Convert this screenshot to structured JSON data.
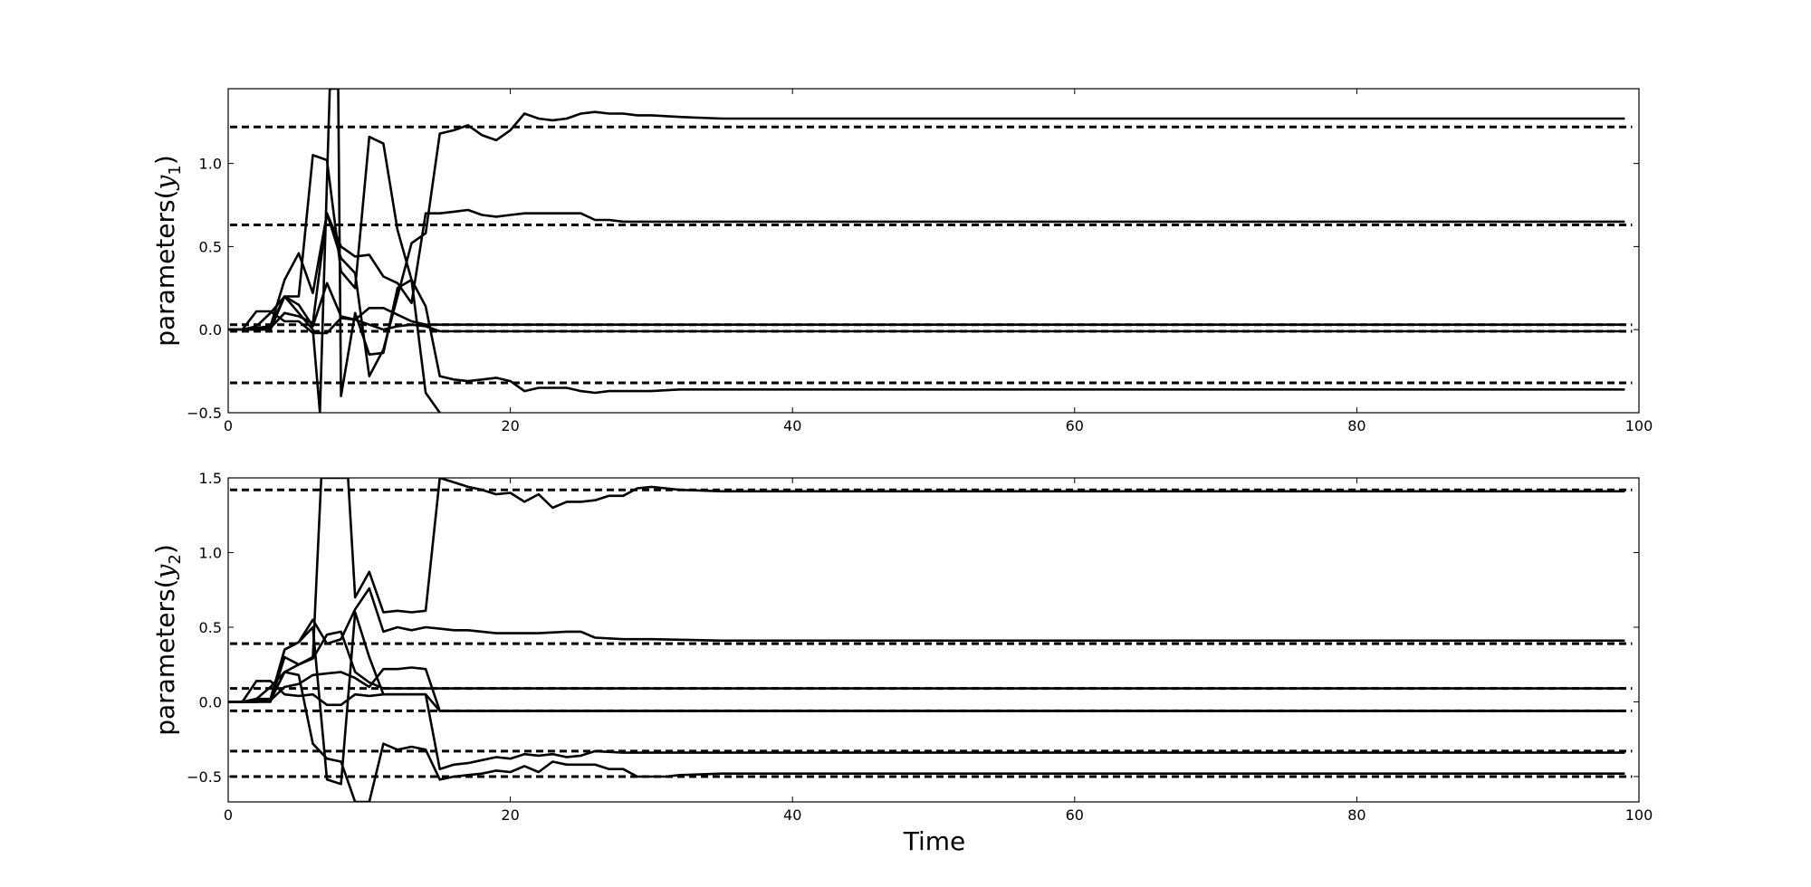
{
  "figure": {
    "xlabel": "Time"
  },
  "chart_data": [
    {
      "type": "line",
      "title": "",
      "ylabel": "parameters(y1)",
      "ylabel_parts": {
        "prefix": "parameters(",
        "var": "y",
        "sub": "1",
        "suffix": ")"
      },
      "xlim": [
        0,
        100
      ],
      "ylim": [
        -0.5,
        1.45
      ],
      "xticks": [
        0,
        20,
        40,
        60,
        80,
        100
      ],
      "xtick_labels": [
        "0",
        "20",
        "40",
        "60",
        "80",
        "100"
      ],
      "yticks": [
        -0.5,
        0.0,
        0.5,
        1.0
      ],
      "ytick_labels": [
        "−0.5",
        "0.0",
        "0.5",
        "1.0"
      ],
      "grid": false,
      "reference_lines": [
        1.22,
        0.63,
        0.03,
        -0.01,
        -0.32
      ],
      "series": [
        {
          "x": [
            0,
            1,
            2,
            3,
            4,
            5,
            6,
            7,
            8,
            9,
            10,
            11,
            12,
            13,
            14,
            15,
            16,
            17,
            18,
            19,
            20,
            21,
            22,
            23,
            24,
            25,
            26,
            27,
            28,
            29,
            30,
            32,
            35,
            40,
            45,
            50,
            60,
            70,
            80,
            90,
            99
          ],
          "values": [
            0,
            0,
            0,
            0.01,
            0.1,
            0.08,
            0.04,
            0.7,
            0.5,
            0.44,
            0.45,
            0.32,
            0.28,
            0.16,
            0.7,
            0.7,
            0.71,
            0.72,
            0.69,
            0.68,
            0.69,
            0.7,
            0.7,
            0.7,
            0.7,
            0.7,
            0.66,
            0.66,
            0.65,
            0.65,
            0.65,
            0.65,
            0.65,
            0.65,
            0.65,
            0.65,
            0.65,
            0.65,
            0.65,
            0.65,
            0.65
          ]
        },
        {
          "x": [
            0,
            1,
            2,
            3,
            4,
            5,
            6,
            7,
            8,
            9,
            10,
            11,
            12,
            13,
            14,
            15,
            16,
            17,
            18,
            19,
            20,
            21,
            22,
            23,
            24,
            25,
            26,
            27,
            28,
            29,
            30,
            32,
            35,
            40,
            45,
            50,
            60,
            70,
            80,
            90,
            99
          ],
          "values": [
            0,
            0,
            0.01,
            0.02,
            0.2,
            0.15,
            0.02,
            0.28,
            0.08,
            0.06,
            0.13,
            0.13,
            0.09,
            0.05,
            0.03,
            0.03,
            0.03,
            0.03,
            0.03,
            0.03,
            0.03,
            0.03,
            0.03,
            0.03,
            0.03,
            0.03,
            0.03,
            0.03,
            0.03,
            0.03,
            0.03,
            0.03,
            0.03,
            0.03,
            0.03,
            0.03,
            0.03,
            0.03,
            0.03,
            0.03,
            0.03
          ]
        },
        {
          "x": [
            0,
            1,
            2,
            3,
            4,
            5,
            6,
            7,
            8,
            9,
            10,
            11,
            12,
            13,
            14,
            15,
            16,
            17,
            18,
            19,
            20,
            21,
            22,
            23,
            24,
            25,
            26,
            27,
            28,
            29,
            30,
            32,
            35,
            40,
            45,
            50,
            60,
            70,
            80,
            90,
            99
          ],
          "values": [
            0,
            0,
            0.01,
            0.02,
            0.3,
            0.46,
            0.22,
            0.7,
            0.43,
            0.34,
            -0.28,
            -0.12,
            0.2,
            0.52,
            0.58,
            1.18,
            1.2,
            1.23,
            1.17,
            1.14,
            1.2,
            1.3,
            1.27,
            1.26,
            1.27,
            1.3,
            1.31,
            1.3,
            1.3,
            1.29,
            1.29,
            1.28,
            1.27,
            1.27,
            1.27,
            1.27,
            1.27,
            1.27,
            1.27,
            1.27,
            1.27
          ]
        },
        {
          "x": [
            0,
            1,
            2,
            3,
            4,
            5,
            6,
            7,
            8,
            9,
            10,
            11,
            12,
            13,
            14,
            15,
            16,
            17,
            18,
            19,
            20,
            21,
            22,
            23,
            24,
            25,
            26,
            27,
            28,
            29,
            30,
            32,
            35,
            40,
            45,
            50,
            60,
            70,
            80,
            90,
            99
          ],
          "values": [
            0,
            0,
            0.11,
            0.11,
            0.05,
            0.05,
            -0.02,
            -0.02,
            0.07,
            0.06,
            0.03,
            0.0,
            0.02,
            0.03,
            0.02,
            -0.01,
            -0.01,
            -0.01,
            -0.01,
            -0.01,
            -0.01,
            -0.01,
            -0.01,
            -0.01,
            -0.01,
            -0.01,
            -0.01,
            -0.01,
            -0.01,
            -0.01,
            -0.01,
            -0.01,
            -0.01,
            -0.01,
            -0.01,
            -0.01,
            -0.01,
            -0.01,
            -0.01,
            -0.01,
            -0.01
          ]
        },
        {
          "x": [
            0,
            1,
            2,
            3,
            4,
            5,
            6,
            7,
            8,
            9,
            10,
            11,
            12,
            13,
            14,
            15,
            16,
            17,
            18,
            19,
            20,
            21,
            22,
            23,
            24,
            25,
            26,
            27,
            28,
            29,
            30,
            32,
            35,
            40,
            45,
            50,
            60,
            70,
            80,
            90,
            99
          ],
          "values": [
            0,
            0,
            0.02,
            0.1,
            0.2,
            0.2,
            1.05,
            1.02,
            0.35,
            0.25,
            1.16,
            1.12,
            0.6,
            0.3,
            0.14,
            -0.28,
            -0.3,
            -0.31,
            -0.3,
            -0.29,
            -0.31,
            -0.37,
            -0.35,
            -0.35,
            -0.35,
            -0.37,
            -0.38,
            -0.37,
            -0.37,
            -0.37,
            -0.37,
            -0.36,
            -0.36,
            -0.36,
            -0.36,
            -0.36,
            -0.36,
            -0.36,
            -0.36,
            -0.36,
            -0.36
          ]
        },
        {
          "x": [
            0,
            1,
            2,
            3,
            4,
            5,
            6,
            6.5,
            7.2,
            7.8,
            8,
            9,
            10,
            11,
            12,
            13,
            14,
            15
          ],
          "values": [
            0,
            0,
            0,
            0,
            0.2,
            0.1,
            0.0,
            -0.5,
            1.45,
            1.45,
            -0.4,
            0.1,
            -0.15,
            -0.14,
            0.25,
            0.3,
            -0.38,
            -0.5
          ]
        }
      ]
    },
    {
      "type": "line",
      "title": "",
      "ylabel": "parameters(y2)",
      "ylabel_parts": {
        "prefix": "parameters(",
        "var": "y",
        "sub": "2",
        "suffix": ")"
      },
      "xlim": [
        0,
        100
      ],
      "ylim": [
        -0.67,
        1.5
      ],
      "xticks": [
        0,
        20,
        40,
        60,
        80,
        100
      ],
      "xtick_labels": [
        "0",
        "20",
        "40",
        "60",
        "80",
        "100"
      ],
      "yticks": [
        -0.5,
        0.0,
        0.5,
        1.0,
        1.5
      ],
      "ytick_labels": [
        "−0.5",
        "0.0",
        "0.5",
        "1.0",
        "1.5"
      ],
      "grid": false,
      "reference_lines": [
        1.42,
        0.39,
        0.09,
        -0.06,
        -0.33,
        -0.5
      ],
      "series": [
        {
          "x": [
            0,
            1,
            2,
            3,
            4,
            5,
            6,
            6.6,
            7.4,
            8,
            8.5,
            9,
            10,
            11,
            12,
            13,
            14,
            15,
            16,
            17,
            18,
            19,
            20,
            21,
            22,
            23,
            24,
            25,
            26,
            27,
            28,
            29,
            30,
            31,
            32,
            35,
            40,
            45,
            50,
            60,
            70,
            80,
            90,
            99
          ],
          "values": [
            0,
            0,
            0,
            0,
            0.3,
            0.25,
            0.3,
            1.5,
            1.5,
            1.5,
            1.5,
            0.7,
            0.87,
            0.6,
            0.61,
            0.6,
            0.61,
            1.5,
            1.47,
            1.44,
            1.42,
            1.39,
            1.4,
            1.34,
            1.39,
            1.3,
            1.34,
            1.34,
            1.35,
            1.38,
            1.38,
            1.43,
            1.44,
            1.43,
            1.42,
            1.41,
            1.41,
            1.41,
            1.41,
            1.41,
            1.41,
            1.41,
            1.41,
            1.41
          ]
        },
        {
          "x": [
            0,
            1,
            2,
            3,
            4,
            5,
            6,
            7,
            8,
            9,
            10,
            11,
            12,
            13,
            14,
            15,
            16,
            17,
            18,
            19,
            20,
            22,
            24,
            25,
            26,
            28,
            30,
            35,
            40,
            50,
            60,
            70,
            80,
            90,
            99
          ],
          "values": [
            0,
            0,
            0.02,
            0.02,
            0.35,
            0.4,
            0.55,
            0.39,
            0.42,
            0.62,
            0.76,
            0.47,
            0.5,
            0.48,
            0.5,
            0.49,
            0.48,
            0.48,
            0.47,
            0.46,
            0.46,
            0.46,
            0.47,
            0.47,
            0.43,
            0.42,
            0.42,
            0.41,
            0.41,
            0.41,
            0.41,
            0.41,
            0.41,
            0.41,
            0.41
          ]
        },
        {
          "x": [
            0,
            1,
            2,
            3,
            4,
            5,
            6,
            7,
            8,
            9,
            10,
            11,
            12,
            13,
            14,
            15,
            16,
            20,
            25,
            30,
            40,
            50,
            60,
            70,
            80,
            90,
            99
          ],
          "values": [
            0,
            0,
            0.01,
            0.01,
            0.1,
            0.12,
            0.18,
            0.19,
            0.2,
            0.16,
            0.1,
            0.22,
            0.22,
            0.23,
            0.22,
            -0.06,
            -0.06,
            -0.06,
            -0.06,
            -0.06,
            -0.06,
            -0.06,
            -0.06,
            -0.06,
            -0.06,
            -0.06,
            -0.06
          ]
        },
        {
          "x": [
            0,
            1,
            2,
            3,
            4,
            5,
            6,
            7,
            8,
            9,
            10,
            11,
            12,
            13,
            14,
            15,
            20,
            25,
            30,
            40,
            50,
            60,
            70,
            80,
            90,
            99
          ],
          "values": [
            0,
            0,
            0,
            0.01,
            0.2,
            0.25,
            0.29,
            0.45,
            0.47,
            0.2,
            0.13,
            0.09,
            0.09,
            0.09,
            0.09,
            0.09,
            0.09,
            0.09,
            0.09,
            0.09,
            0.09,
            0.09,
            0.09,
            0.09,
            0.09,
            0.09
          ]
        },
        {
          "x": [
            0,
            1,
            2,
            3,
            4,
            5,
            6,
            7,
            8,
            9,
            10,
            11,
            12,
            13,
            14,
            15,
            16,
            20,
            25,
            30,
            40,
            50,
            60,
            70,
            80,
            90,
            99
          ],
          "values": [
            0,
            0,
            0.14,
            0.14,
            0.05,
            0.04,
            0.05,
            -0.02,
            -0.02,
            0.05,
            0.04,
            0.05,
            0.05,
            0.05,
            0.05,
            -0.06,
            -0.06,
            -0.06,
            -0.06,
            -0.06,
            -0.06,
            -0.06,
            -0.06,
            -0.06,
            -0.06,
            -0.06,
            -0.06
          ]
        },
        {
          "x": [
            0,
            1,
            2,
            3,
            4,
            5,
            6,
            7,
            8,
            9,
            10,
            11,
            12,
            13,
            14,
            15,
            16,
            17,
            18,
            19,
            20,
            21,
            22,
            23,
            24,
            25,
            26,
            27,
            28,
            29,
            30,
            31,
            32,
            35,
            40,
            45,
            50,
            60,
            70,
            80,
            90,
            99
          ],
          "values": [
            0,
            0,
            0.02,
            0.1,
            0.2,
            0.18,
            -0.28,
            -0.38,
            -0.4,
            -0.67,
            -0.67,
            -0.28,
            -0.32,
            -0.3,
            -0.32,
            -0.52,
            -0.5,
            -0.49,
            -0.48,
            -0.46,
            -0.47,
            -0.43,
            -0.47,
            -0.4,
            -0.42,
            -0.42,
            -0.42,
            -0.45,
            -0.45,
            -0.5,
            -0.5,
            -0.5,
            -0.49,
            -0.48,
            -0.48,
            -0.48,
            -0.48,
            -0.48,
            -0.48,
            -0.48,
            -0.48,
            -0.48
          ]
        },
        {
          "x": [
            0,
            1,
            2,
            3,
            4,
            5,
            6,
            7,
            8,
            9,
            10,
            11,
            12,
            13,
            14,
            15,
            16,
            17,
            18,
            19,
            20,
            21,
            22,
            23,
            24,
            25,
            26,
            28,
            30,
            35,
            40,
            50,
            60,
            70,
            80,
            90,
            99
          ],
          "values": [
            0,
            0,
            0,
            0.01,
            0.35,
            0.4,
            0.5,
            -0.52,
            -0.55,
            0.6,
            0.3,
            0.05,
            0.05,
            0.05,
            0.05,
            -0.45,
            -0.42,
            -0.41,
            -0.39,
            -0.37,
            -0.38,
            -0.35,
            -0.36,
            -0.35,
            -0.37,
            -0.36,
            -0.33,
            -0.34,
            -0.34,
            -0.34,
            -0.34,
            -0.34,
            -0.34,
            -0.34,
            -0.34,
            -0.34,
            -0.34
          ]
        }
      ]
    }
  ]
}
